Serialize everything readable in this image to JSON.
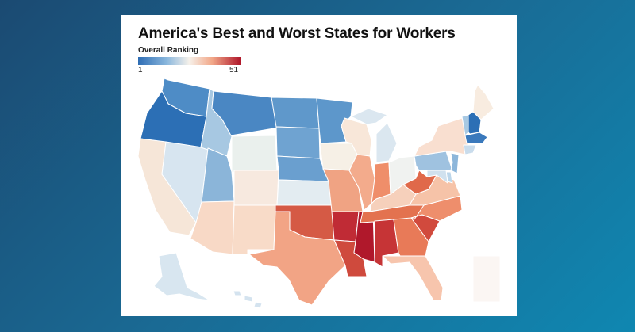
{
  "title": "America's Best and Worst States for Workers",
  "legend": {
    "title": "Overall Ranking",
    "min_label": "1",
    "max_label": "51"
  },
  "colors": {
    "background_gradient": [
      "#1b4a72",
      "#0f87b1"
    ],
    "scale_low": "#2e6db4",
    "scale_mid": "#f6f1ea",
    "scale_high": "#b0182b"
  },
  "states": [
    {
      "id": "WA",
      "color": "#4e8cc6"
    },
    {
      "id": "OR",
      "color": "#2c6fb5"
    },
    {
      "id": "CA",
      "color": "#f6e6d8"
    },
    {
      "id": "NV",
      "color": "#d7e5f0"
    },
    {
      "id": "ID",
      "color": "#a7c8e2"
    },
    {
      "id": "MT",
      "color": "#4a87c3"
    },
    {
      "id": "WY",
      "color": "#eaf0ed"
    },
    {
      "id": "UT",
      "color": "#8bb5d9"
    },
    {
      "id": "AZ",
      "color": "#f8d9c6"
    },
    {
      "id": "CO",
      "color": "#f7e9df"
    },
    {
      "id": "NM",
      "color": "#f8dbc8"
    },
    {
      "id": "ND",
      "color": "#5f98cb"
    },
    {
      "id": "SD",
      "color": "#6fa3d1"
    },
    {
      "id": "NE",
      "color": "#6a9fcf"
    },
    {
      "id": "KS",
      "color": "#e3ecf1"
    },
    {
      "id": "OK",
      "color": "#d55a45"
    },
    {
      "id": "TX",
      "color": "#f2a485"
    },
    {
      "id": "MN",
      "color": "#5d97cb"
    },
    {
      "id": "IA",
      "color": "#f6f0e6"
    },
    {
      "id": "MO",
      "color": "#f0a383"
    },
    {
      "id": "AR",
      "color": "#c02b35"
    },
    {
      "id": "LA",
      "color": "#cf4a3d"
    },
    {
      "id": "WI",
      "color": "#f8e7d9"
    },
    {
      "id": "IL",
      "color": "#f3ab8c"
    },
    {
      "id": "MS",
      "color": "#b0182b"
    },
    {
      "id": "MI",
      "color": "#dbe7f0"
    },
    {
      "id": "IN",
      "color": "#ef8e6a"
    },
    {
      "id": "KY",
      "color": "#f6d0bb"
    },
    {
      "id": "TN",
      "color": "#e3724f"
    },
    {
      "id": "AL",
      "color": "#c63436"
    },
    {
      "id": "OH",
      "color": "#f0f2f0"
    },
    {
      "id": "GA",
      "color": "#e87a58"
    },
    {
      "id": "FL",
      "color": "#f7c5ad"
    },
    {
      "id": "SC",
      "color": "#d14a3d"
    },
    {
      "id": "NC",
      "color": "#ee8e6c"
    },
    {
      "id": "VA",
      "color": "#f6c3a8"
    },
    {
      "id": "WV",
      "color": "#e0694a"
    },
    {
      "id": "PA",
      "color": "#9fc2e0"
    },
    {
      "id": "NY",
      "color": "#f9dfd0"
    },
    {
      "id": "ME",
      "color": "#f8ece0"
    },
    {
      "id": "VT",
      "color": "#a8c9e3"
    },
    {
      "id": "NH",
      "color": "#2c6fb5"
    },
    {
      "id": "MA",
      "color": "#3a79bc"
    },
    {
      "id": "NJ",
      "color": "#8db6da"
    },
    {
      "id": "MD",
      "color": "#d0e1ee"
    },
    {
      "id": "DE",
      "color": "#bcd6ea"
    },
    {
      "id": "CT",
      "color": "#c9dcec"
    },
    {
      "id": "AK",
      "color": "#d8e6f0"
    },
    {
      "id": "HI",
      "color": "#d4e3ef"
    },
    {
      "id": "DC",
      "color": "#fbf6f3"
    }
  ]
}
